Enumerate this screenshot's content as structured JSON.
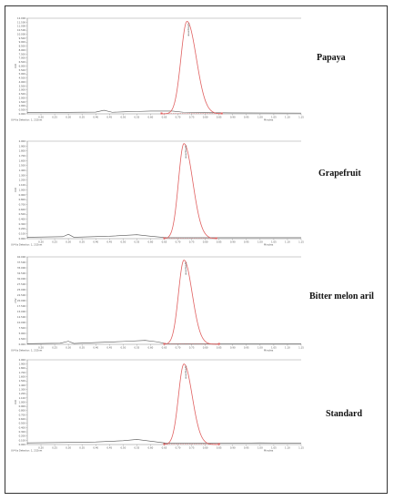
{
  "chart_data": [
    {
      "type": "line",
      "sample": "Papaya",
      "y_unit": "mV",
      "x_unit": "Minutes",
      "footer": "UV-Vis Detector: 1, 232nm",
      "peak_label": "Lycopene",
      "xlim": [
        0.15,
        1.15
      ],
      "ylim": [
        0,
        12.0
      ],
      "y_ticks": [
        "0.000",
        "0.500",
        "1.000",
        "1.500",
        "2.000",
        "2.500",
        "3.000",
        "3.500",
        "4.000",
        "4.500",
        "5.000",
        "5.500",
        "6.000",
        "6.500",
        "7.000",
        "7.500",
        "8.000",
        "8.500",
        "9.000",
        "9.500",
        "10.000",
        "10.500",
        "11.000",
        "11.500",
        "12.000"
      ],
      "x_ticks": [
        "0.20",
        "0.25",
        "0.30",
        "0.35",
        "0.40",
        "0.45",
        "0.50",
        "0.55",
        "0.60",
        "0.65",
        "0.70",
        "0.75",
        "0.80",
        "0.85",
        "0.90",
        "0.95",
        "1.00",
        "1.05",
        "1.10",
        "1.15"
      ],
      "baseline": [
        [
          0.15,
          0.15
        ],
        [
          0.25,
          0.18
        ],
        [
          0.4,
          0.22
        ],
        [
          0.43,
          0.45
        ],
        [
          0.46,
          0.2
        ],
        [
          0.5,
          0.25
        ],
        [
          0.55,
          0.3
        ],
        [
          0.6,
          0.35
        ],
        [
          0.68,
          0.35
        ],
        [
          0.72,
          0.2
        ],
        [
          0.8,
          0.15
        ],
        [
          0.9,
          0.12
        ],
        [
          1.15,
          0.1
        ]
      ],
      "peak": {
        "center": 0.733,
        "height": 11.6,
        "sigma_left": 0.022,
        "sigma_right": 0.034,
        "range": [
          0.64,
          0.86
        ]
      }
    },
    {
      "type": "line",
      "sample": "Grapefruit",
      "y_unit": "mV",
      "x_unit": "Minutes",
      "footer": "UV-Vis Detector: 1, 232nm",
      "peak_label": "Lycopene",
      "xlim": [
        0.15,
        1.15
      ],
      "ylim": [
        0,
        2.0
      ],
      "y_ticks": [
        "0.000",
        "0.100",
        "0.200",
        "0.300",
        "0.400",
        "0.500",
        "0.600",
        "0.700",
        "0.800",
        "0.900",
        "1.000",
        "1.100",
        "1.200",
        "1.300",
        "1.400",
        "1.500",
        "1.600",
        "1.700",
        "1.800",
        "1.900",
        "2.000"
      ],
      "x_ticks": [
        "0.20",
        "0.25",
        "0.30",
        "0.35",
        "0.40",
        "0.45",
        "0.50",
        "0.55",
        "0.60",
        "0.65",
        "0.70",
        "0.75",
        "0.80",
        "0.85",
        "0.90",
        "0.95",
        "1.00",
        "1.05",
        "1.10",
        "1.15"
      ],
      "baseline": [
        [
          0.15,
          0.03
        ],
        [
          0.28,
          0.04
        ],
        [
          0.3,
          0.09
        ],
        [
          0.32,
          0.03
        ],
        [
          0.45,
          0.05
        ],
        [
          0.55,
          0.08
        ],
        [
          0.6,
          0.05
        ],
        [
          0.66,
          0.02
        ],
        [
          0.8,
          0.02
        ],
        [
          0.9,
          0.02
        ],
        [
          1.15,
          0.02
        ]
      ],
      "peak": {
        "center": 0.722,
        "height": 1.95,
        "sigma_left": 0.02,
        "sigma_right": 0.032,
        "range": [
          0.65,
          0.84
        ]
      }
    },
    {
      "type": "line",
      "sample": "Bitter melon aril",
      "y_unit": "mV",
      "x_unit": "Minutes",
      "footer": "UV-Vis Detector: 1, 232nm",
      "peak_label": "Lycopene",
      "xlim": [
        0.15,
        1.15
      ],
      "ylim": [
        0,
        40.0
      ],
      "y_ticks": [
        "0.000",
        "2.500",
        "5.000",
        "7.500",
        "10.000",
        "12.500",
        "15.000",
        "17.500",
        "20.000",
        "22.500",
        "25.000",
        "27.500",
        "30.000",
        "32.500",
        "35.000",
        "37.500",
        "40.000"
      ],
      "x_ticks": [
        "0.20",
        "0.25",
        "0.30",
        "0.35",
        "0.40",
        "0.45",
        "0.50",
        "0.55",
        "0.60",
        "0.65",
        "0.70",
        "0.75",
        "0.80",
        "0.85",
        "0.90",
        "0.95",
        "1.00",
        "1.05",
        "1.10",
        "1.15"
      ],
      "baseline": [
        [
          0.15,
          0.3
        ],
        [
          0.27,
          0.5
        ],
        [
          0.3,
          1.4
        ],
        [
          0.32,
          0.4
        ],
        [
          0.4,
          0.8
        ],
        [
          0.5,
          1.3
        ],
        [
          0.58,
          1.8
        ],
        [
          0.62,
          1.2
        ],
        [
          0.66,
          0.3
        ],
        [
          0.8,
          0.2
        ],
        [
          0.9,
          0.2
        ],
        [
          1.15,
          0.2
        ]
      ],
      "peak": {
        "center": 0.722,
        "height": 38.5,
        "sigma_left": 0.02,
        "sigma_right": 0.03,
        "range": [
          0.65,
          0.85
        ]
      }
    },
    {
      "type": "line",
      "sample": "Standard",
      "y_unit": "mV",
      "x_unit": "Minutes",
      "footer": "UV-Vis Detector: 1, 232nm",
      "peak_label": "Lycopene",
      "xlim": [
        0.15,
        1.15
      ],
      "ylim": [
        0,
        2.0
      ],
      "y_ticks": [
        "0.000",
        "0.100",
        "0.200",
        "0.300",
        "0.400",
        "0.500",
        "0.600",
        "0.700",
        "0.800",
        "0.900",
        "1.000",
        "1.100",
        "1.200",
        "1.300",
        "1.400",
        "1.500",
        "1.600",
        "1.700",
        "1.800",
        "1.900",
        "2.000"
      ],
      "x_ticks": [
        "0.20",
        "0.25",
        "0.30",
        "0.35",
        "0.40",
        "0.45",
        "0.50",
        "0.55",
        "0.60",
        "0.65",
        "0.70",
        "0.75",
        "0.80",
        "0.85",
        "0.90",
        "0.95",
        "1.00",
        "1.05",
        "1.10",
        "1.15"
      ],
      "baseline": [
        [
          0.15,
          0.04
        ],
        [
          0.3,
          0.05
        ],
        [
          0.4,
          0.06
        ],
        [
          0.5,
          0.09
        ],
        [
          0.55,
          0.12
        ],
        [
          0.6,
          0.08
        ],
        [
          0.66,
          0.03
        ],
        [
          0.8,
          0.03
        ],
        [
          0.9,
          0.03
        ],
        [
          1.0,
          0.04
        ],
        [
          1.15,
          0.03
        ]
      ],
      "peak": {
        "center": 0.722,
        "height": 1.9,
        "sigma_left": 0.02,
        "sigma_right": 0.03,
        "range": [
          0.65,
          0.85
        ]
      }
    }
  ],
  "colors": {
    "trace": "#555555",
    "peak": "#e06060",
    "axis": "#888888",
    "frame": "#333333"
  }
}
